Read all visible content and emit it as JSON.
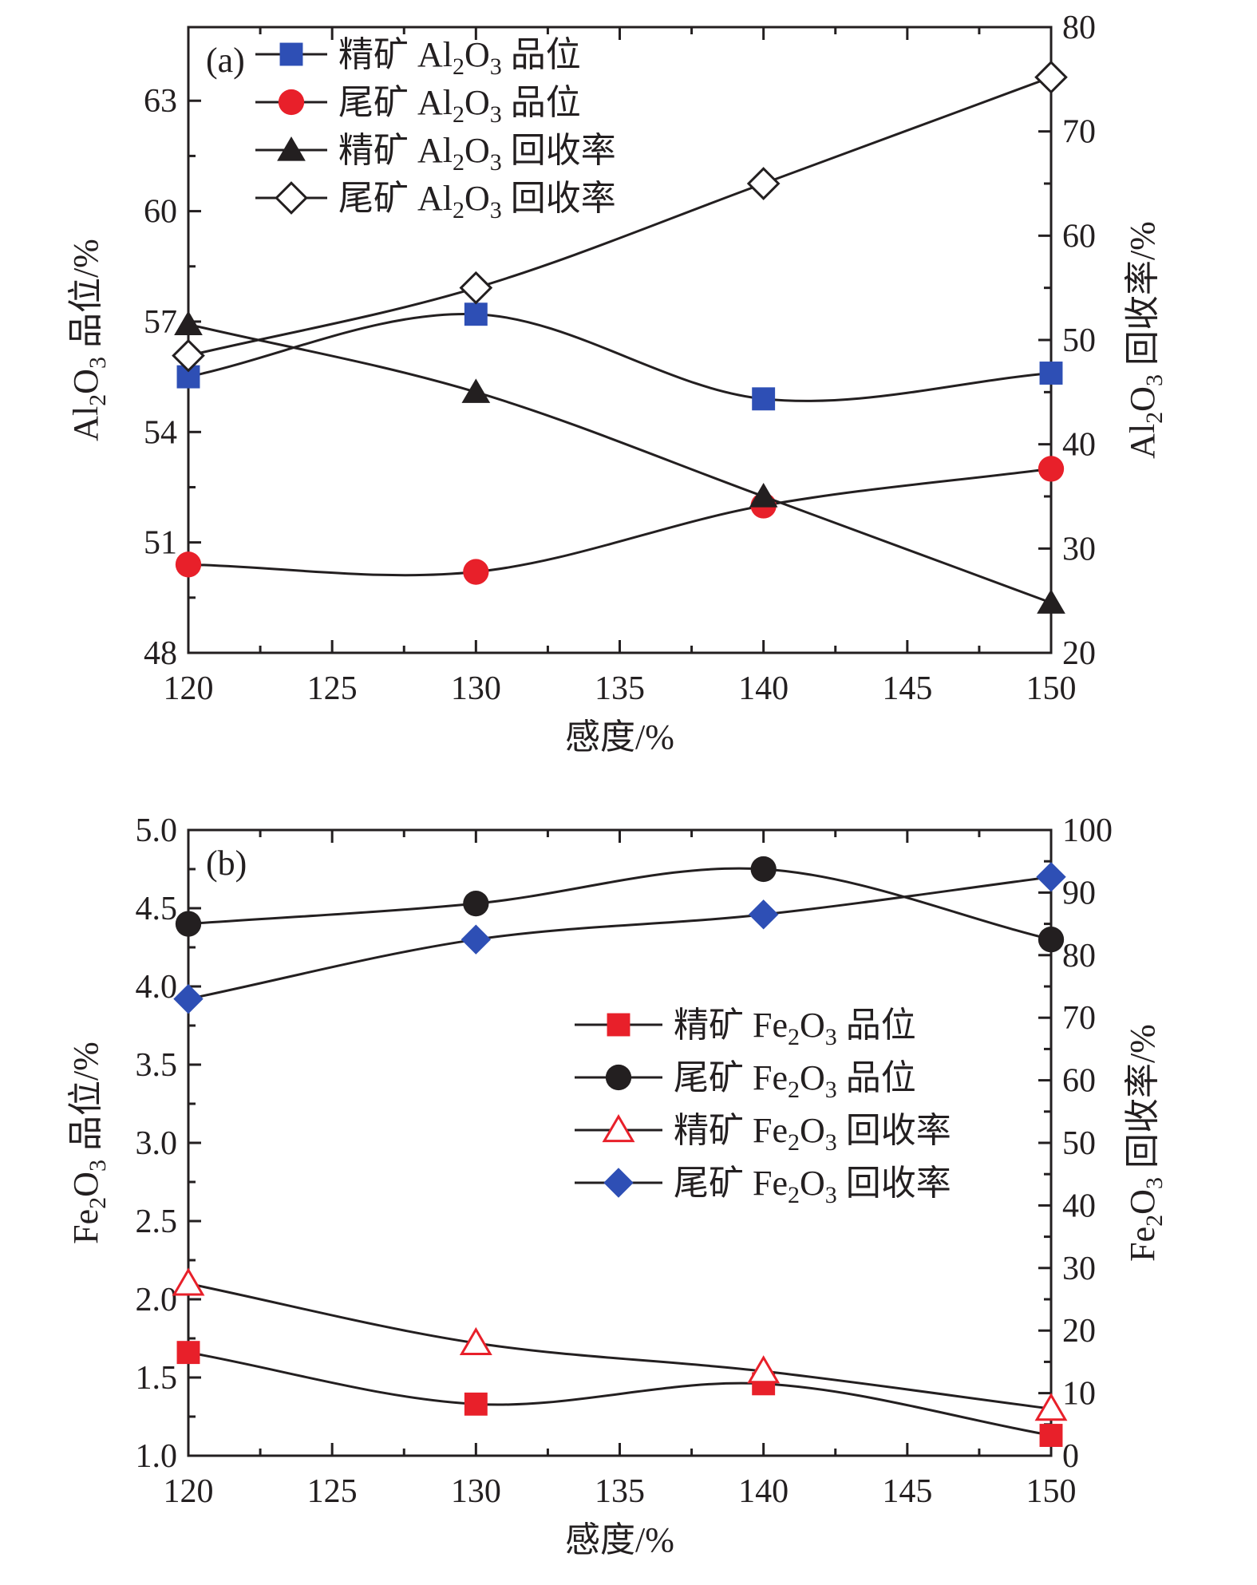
{
  "chart_data": [
    {
      "type": "line",
      "panel_label": "(a)",
      "xlabel": "感度/%",
      "ylabel": "Al₂O₃ 品位/%",
      "y2label": "Al₂O₃ 回收率/%",
      "x": [
        120,
        130,
        140,
        150
      ],
      "xlim": [
        120,
        150
      ],
      "xticks": [
        120,
        125,
        130,
        135,
        140,
        145,
        150
      ],
      "ylim": [
        48,
        65
      ],
      "yticks": [
        48,
        51,
        54,
        57,
        60,
        63
      ],
      "y2lim": [
        20,
        80
      ],
      "y2ticks": [
        20,
        30,
        40,
        50,
        60,
        70,
        80
      ],
      "legend_position": "top-left",
      "series": [
        {
          "name": "精矿 Al₂O₃ 品位",
          "axis": "left",
          "marker": "square",
          "color": "#2e4fb5",
          "values": [
            55.5,
            57.2,
            54.9,
            55.6
          ]
        },
        {
          "name": "尾矿 Al₂O₃ 品位",
          "axis": "left",
          "marker": "circle",
          "color": "#e8202a",
          "values": [
            50.4,
            50.2,
            52.0,
            53.0
          ]
        },
        {
          "name": "精矿 Al₂O₃ 回收率",
          "axis": "right",
          "marker": "triangle",
          "color": "#231f20",
          "values": [
            51.5,
            45.0,
            35.0,
            24.8
          ]
        },
        {
          "name": "尾矿 Al₂O₃ 回收率",
          "axis": "right",
          "marker": "diamond-open",
          "color": "#231f20",
          "values": [
            48.5,
            55.0,
            65.0,
            75.2
          ]
        }
      ]
    },
    {
      "type": "line",
      "panel_label": "(b)",
      "xlabel": "感度/%",
      "ylabel": "Fe₂O₃ 品位/%",
      "y2label": "Fe₂O₃ 回收率/%",
      "x": [
        120,
        130,
        140,
        150
      ],
      "xlim": [
        120,
        150
      ],
      "xticks": [
        120,
        125,
        130,
        135,
        140,
        145,
        150
      ],
      "ylim": [
        1.0,
        5.0
      ],
      "yticks": [
        1.0,
        1.5,
        2.0,
        2.5,
        3.0,
        3.5,
        4.0,
        4.5,
        5.0
      ],
      "y2lim": [
        0,
        100
      ],
      "y2ticks": [
        0,
        10,
        20,
        30,
        40,
        50,
        60,
        70,
        80,
        90,
        100
      ],
      "legend_position": "center-right",
      "series": [
        {
          "name": "精矿 Fe₂O₃ 品位",
          "axis": "left",
          "marker": "square",
          "color": "#e8202a",
          "values": [
            1.66,
            1.33,
            1.46,
            1.13
          ]
        },
        {
          "name": "尾矿 Fe₂O₃ 品位",
          "axis": "left",
          "marker": "circle",
          "color": "#231f20",
          "values": [
            4.4,
            4.53,
            4.75,
            4.3
          ]
        },
        {
          "name": "精矿 Fe₂O₃ 回收率",
          "axis": "right",
          "marker": "triangle-open",
          "color": "#e8202a",
          "values": [
            27.5,
            18.0,
            13.5,
            7.5
          ]
        },
        {
          "name": "尾矿 Fe₂O₃ 回收率",
          "axis": "right",
          "marker": "diamond",
          "color": "#2e4fb5",
          "values": [
            73.0,
            82.5,
            86.5,
            92.5
          ]
        }
      ]
    }
  ]
}
